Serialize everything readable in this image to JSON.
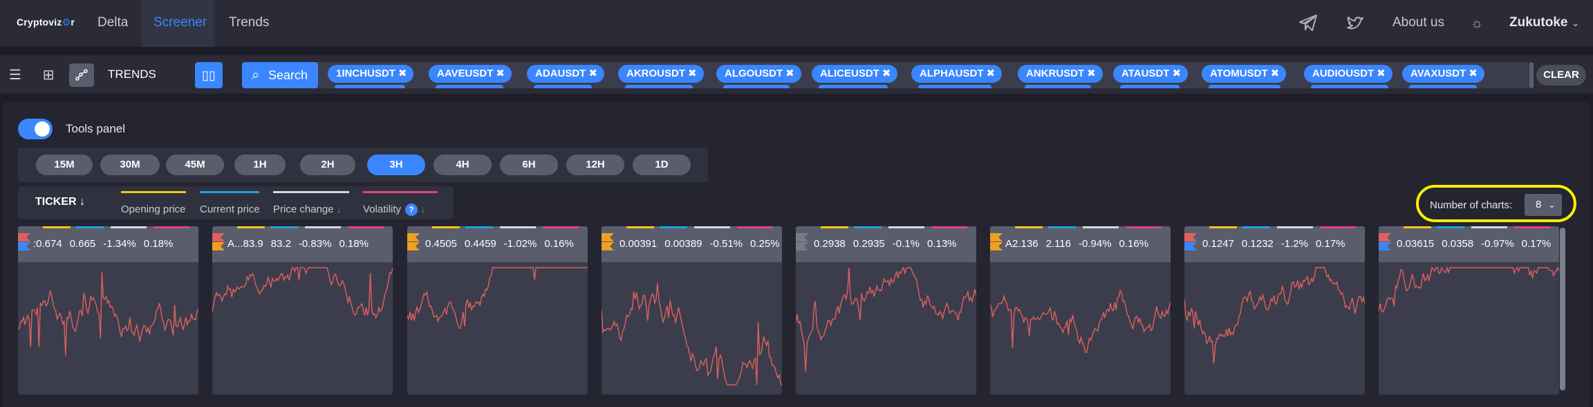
{
  "app": {
    "logo_text": "Cryptoviz",
    "logo_tail": "r",
    "brand_color": "#3a86ff"
  },
  "nav": {
    "items": [
      {
        "label": "Delta",
        "active": false
      },
      {
        "label": "Screener",
        "active": true
      },
      {
        "label": "Trends",
        "active": false
      }
    ],
    "right": {
      "telegram_icon": "telegram-icon",
      "twitter_icon": "twitter-icon",
      "about": "About us",
      "theme_icon": "sun-icon",
      "user": "Zukutoke"
    }
  },
  "toolbar": {
    "mode_label": "TRENDS",
    "search_label": "Search",
    "clear_label": "CLEAR",
    "tickers": [
      "1INCHUSDT",
      "AAVEUSDT",
      "ADAUSDT",
      "AKROUSDT",
      "ALGOUSDT",
      "ALICEUSDT",
      "ALPHAUSDT",
      "ANKRUSDT",
      "ATAUSDT",
      "ATOMUSDT",
      "AUDIOUSDT",
      "AVAXUSDT"
    ]
  },
  "tools": {
    "toggle_label": "Tools panel",
    "toggle_on": true,
    "timeframes": [
      "15M",
      "30M",
      "45M",
      "1H",
      "2H",
      "3H",
      "4H",
      "6H",
      "12H",
      "1D"
    ],
    "active_timeframe": "3H",
    "ticker_header": "TICKER",
    "ticker_sort": "↓",
    "legend": [
      {
        "label": "Opening price",
        "color": "#f5c518"
      },
      {
        "label": "Current price",
        "color": "#1fa2e6"
      },
      {
        "label": "Price change",
        "color": "#d7d8de",
        "sort": "↓"
      },
      {
        "label": "Volatility",
        "color": "#e0447b",
        "help": "?",
        "sort": "↓"
      }
    ],
    "num_charts_label": "Number of charts:",
    "num_charts_value": "8"
  },
  "charts": [
    {
      "ticker": ":",
      "open": "0.674",
      "current": "0.665",
      "change": "-1.34%",
      "volatility": "0.18%",
      "flag": "red-blue",
      "line_color": "#e0605e"
    },
    {
      "ticker": "A...",
      "open": "83.9",
      "current": "83.2",
      "change": "-0.83%",
      "volatility": "0.18%",
      "flag": "red-orange",
      "line_color": "#e0605e"
    },
    {
      "ticker": "",
      "open": "0.4505",
      "current": "0.4459",
      "change": "-1.02%",
      "volatility": "0.16%",
      "flag": "orange",
      "line_color": "#e0605e"
    },
    {
      "ticker": "",
      "open": "0.00391",
      "current": "0.00389",
      "change": "-0.51%",
      "volatility": "0.25%",
      "flag": "orange",
      "line_color": "#e0605e"
    },
    {
      "ticker": "",
      "open": "0.2938",
      "current": "0.2935",
      "change": "-0.1%",
      "volatility": "0.13%",
      "flag": "gray",
      "line_color": "#e0605e"
    },
    {
      "ticker": "A",
      "open": "2.136",
      "current": "2.116",
      "change": "-0.94%",
      "volatility": "0.16%",
      "flag": "orange",
      "line_color": "#e0605e"
    },
    {
      "ticker": "",
      "open": "0.1247",
      "current": "0.1232",
      "change": "-1.2%",
      "volatility": "0.17%",
      "flag": "red-blue",
      "line_color": "#e0605e"
    },
    {
      "ticker": "",
      "open": "0.03615",
      "current": "0.0358",
      "change": "-0.97%",
      "volatility": "0.17%",
      "flag": "red-blue",
      "line_color": "#e0605e"
    }
  ]
}
